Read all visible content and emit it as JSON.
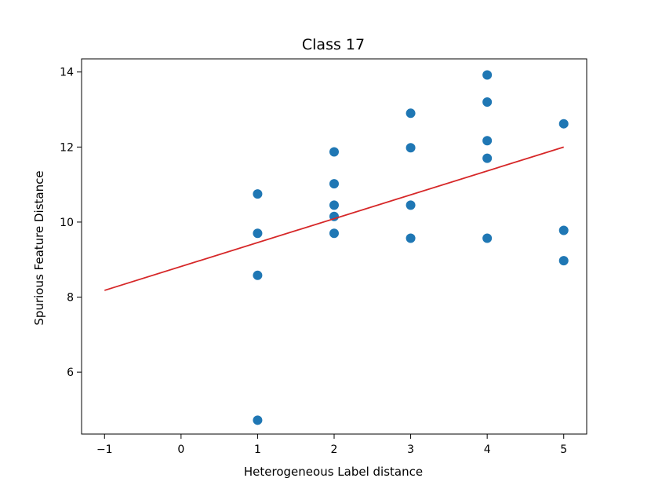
{
  "chart_data": {
    "type": "scatter",
    "title": "Class 17",
    "xlabel": "Heterogeneous Label distance",
    "ylabel": "Spurious Feature Distance",
    "xlim": [
      -1.3,
      5.3
    ],
    "ylim": [
      4.35,
      14.35
    ],
    "xticks": [
      -1,
      0,
      1,
      2,
      3,
      4,
      5
    ],
    "xtick_labels": [
      "−1",
      "0",
      "1",
      "2",
      "3",
      "4",
      "5"
    ],
    "yticks": [
      6,
      8,
      10,
      12,
      14
    ],
    "ytick_labels": [
      "6",
      "8",
      "10",
      "12",
      "14"
    ],
    "grid": false,
    "points": [
      {
        "x": 1,
        "y": 10.75
      },
      {
        "x": 1,
        "y": 9.7
      },
      {
        "x": 1,
        "y": 8.58
      },
      {
        "x": 1,
        "y": 4.72
      },
      {
        "x": 2,
        "y": 11.87
      },
      {
        "x": 2,
        "y": 11.02
      },
      {
        "x": 2,
        "y": 10.45
      },
      {
        "x": 2,
        "y": 10.15
      },
      {
        "x": 2,
        "y": 9.7
      },
      {
        "x": 3,
        "y": 12.9
      },
      {
        "x": 3,
        "y": 11.98
      },
      {
        "x": 3,
        "y": 10.45
      },
      {
        "x": 3,
        "y": 9.57
      },
      {
        "x": 4,
        "y": 13.92
      },
      {
        "x": 4,
        "y": 13.2
      },
      {
        "x": 4,
        "y": 12.17
      },
      {
        "x": 4,
        "y": 11.7
      },
      {
        "x": 4,
        "y": 9.57
      },
      {
        "x": 5,
        "y": 12.62
      },
      {
        "x": 5,
        "y": 9.78
      },
      {
        "x": 5,
        "y": 8.97
      }
    ],
    "trend_line": {
      "x": [
        -1,
        5
      ],
      "y": [
        8.18,
        12.0
      ]
    },
    "colors": {
      "points": "#1f77b4",
      "trend_line": "#d62728"
    }
  }
}
